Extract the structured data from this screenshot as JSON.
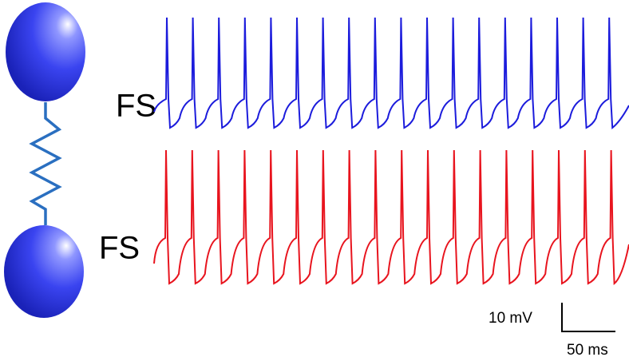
{
  "neurons": [
    {
      "label": "FS"
    },
    {
      "label": "FS"
    }
  ],
  "scale_bar": {
    "voltage": "10 mV",
    "time": "50 ms"
  }
}
